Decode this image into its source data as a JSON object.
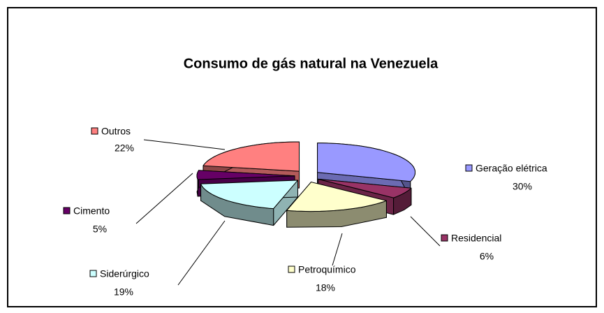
{
  "chart_data": {
    "type": "pie",
    "title": "Consumo de gás natural na Venezuela",
    "categories": [
      "Geração elétrica",
      "Residencial",
      "Petroquímico",
      "Siderúrgico",
      "Cimento",
      "Outros"
    ],
    "values": [
      30,
      6,
      18,
      19,
      5,
      22
    ],
    "value_labels": [
      "30%",
      "6%",
      "18%",
      "19%",
      "5%",
      "22%"
    ],
    "colors": [
      "#9999ff",
      "#993366",
      "#ffffcc",
      "#ccffff",
      "#660066",
      "#ff8080"
    ]
  }
}
